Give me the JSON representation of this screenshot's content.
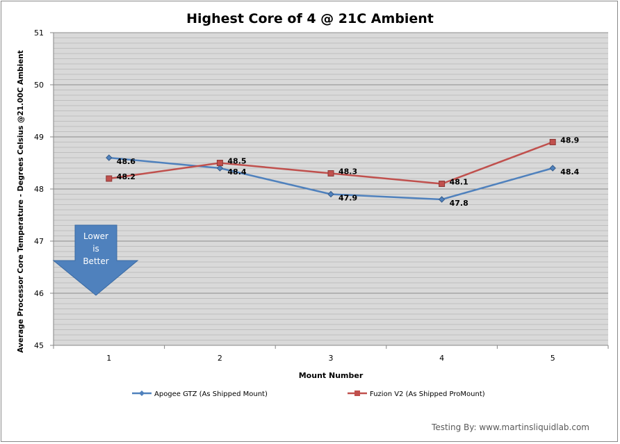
{
  "chart_data": {
    "type": "line",
    "title": "Highest Core of 4 @ 21C Ambient",
    "xlabel": "Mount Number",
    "ylabel": "Average Processor Core Temperature - Degrees Celsius @21.00C Ambient",
    "categories": [
      "1",
      "2",
      "3",
      "4",
      "5"
    ],
    "ylim": [
      45,
      51
    ],
    "yticks": [
      "45",
      "46",
      "47",
      "48",
      "49",
      "50",
      "51"
    ],
    "grid": "major every 1, minor every 0.1",
    "legend_position": "bottom",
    "series": [
      {
        "name": "Apogee GTZ (As Shipped Mount)",
        "color": "#4F81BD",
        "marker": "diamond",
        "values": [
          48.6,
          48.4,
          47.9,
          47.8,
          48.4
        ],
        "labels": [
          "48.6",
          "48.4",
          "47.9",
          "47.8",
          "48.4"
        ]
      },
      {
        "name": "Fuzion V2 (As Shipped ProMount)",
        "color": "#C0504D",
        "marker": "square",
        "values": [
          48.2,
          48.5,
          48.3,
          48.1,
          48.9
        ],
        "labels": [
          "48.2",
          "48.5",
          "48.3",
          "48.1",
          "48.9"
        ]
      }
    ],
    "annotation": {
      "lines": [
        "Lower",
        "is",
        "Better"
      ],
      "color": "#4F81BD"
    }
  },
  "footer": {
    "credit": "Testing By: www.martinsliquidlab.com"
  }
}
